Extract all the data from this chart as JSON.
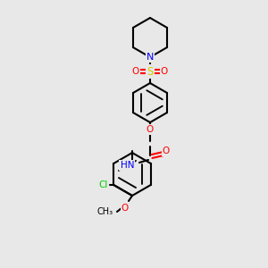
{
  "bg_color": "#e8e8e8",
  "bond_color": "#000000",
  "bond_lw": 1.5,
  "atom_colors": {
    "N": "#0000FF",
    "O": "#FF0000",
    "S": "#CCCC00",
    "Cl": "#00CC00",
    "C": "#000000"
  },
  "font_size": 7.5,
  "fig_size": [
    3.0,
    3.0
  ],
  "dpi": 100
}
